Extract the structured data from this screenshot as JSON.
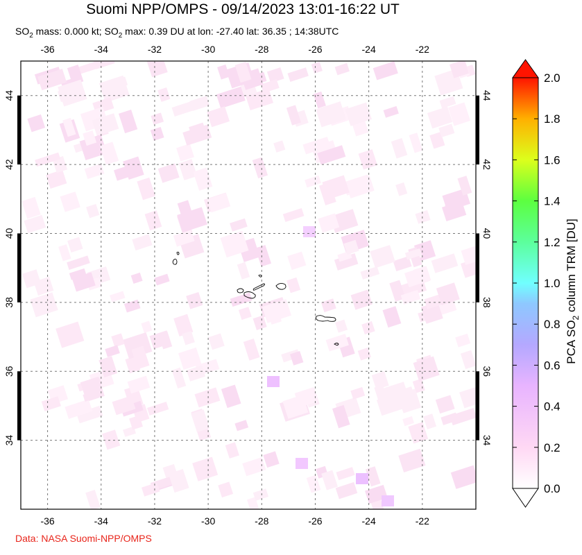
{
  "title": "Suomi NPP/OMPS - 09/14/2023 13:01-16:22 UT",
  "subtitle": {
    "part1": "SO",
    "sub1": "2",
    "part2": " mass: 0.000 kt; SO",
    "sub2": "2",
    "part3": " max: 0.39 DU at lon: -27.40 lat: 36.35 ; 14:38UTC"
  },
  "credit": "Data: NASA Suomi-NPP/OMPS",
  "map": {
    "lon_range": [
      -37,
      -20
    ],
    "lat_range": [
      32,
      45
    ],
    "lon_ticks": [
      "-36",
      "-34",
      "-32",
      "-30",
      "-28",
      "-26",
      "-24",
      "-22"
    ],
    "lat_ticks": [
      "34",
      "36",
      "38",
      "40",
      "42",
      "44"
    ],
    "gridlines": "dashed"
  },
  "colorbar": {
    "ticks": [
      "0.0",
      "0.2",
      "0.4",
      "0.6",
      "0.8",
      "1.0",
      "1.2",
      "1.4",
      "1.6",
      "1.8",
      "2.0"
    ],
    "label_pre": "PCA SO",
    "label_sub": "2",
    "label_post": " column TRM [DU]",
    "range": [
      0,
      2
    ],
    "colors": [
      "#ffffff",
      "#ffd0f0",
      "#e8b0ff",
      "#b0a8ff",
      "#90c8ff",
      "#70ffff",
      "#58ff98",
      "#70ff40",
      "#e0ff20",
      "#ffc000",
      "#ff6000",
      "#ff1000"
    ]
  },
  "peak": {
    "value": 0.39,
    "lon": -27.4,
    "lat": 36.35
  }
}
